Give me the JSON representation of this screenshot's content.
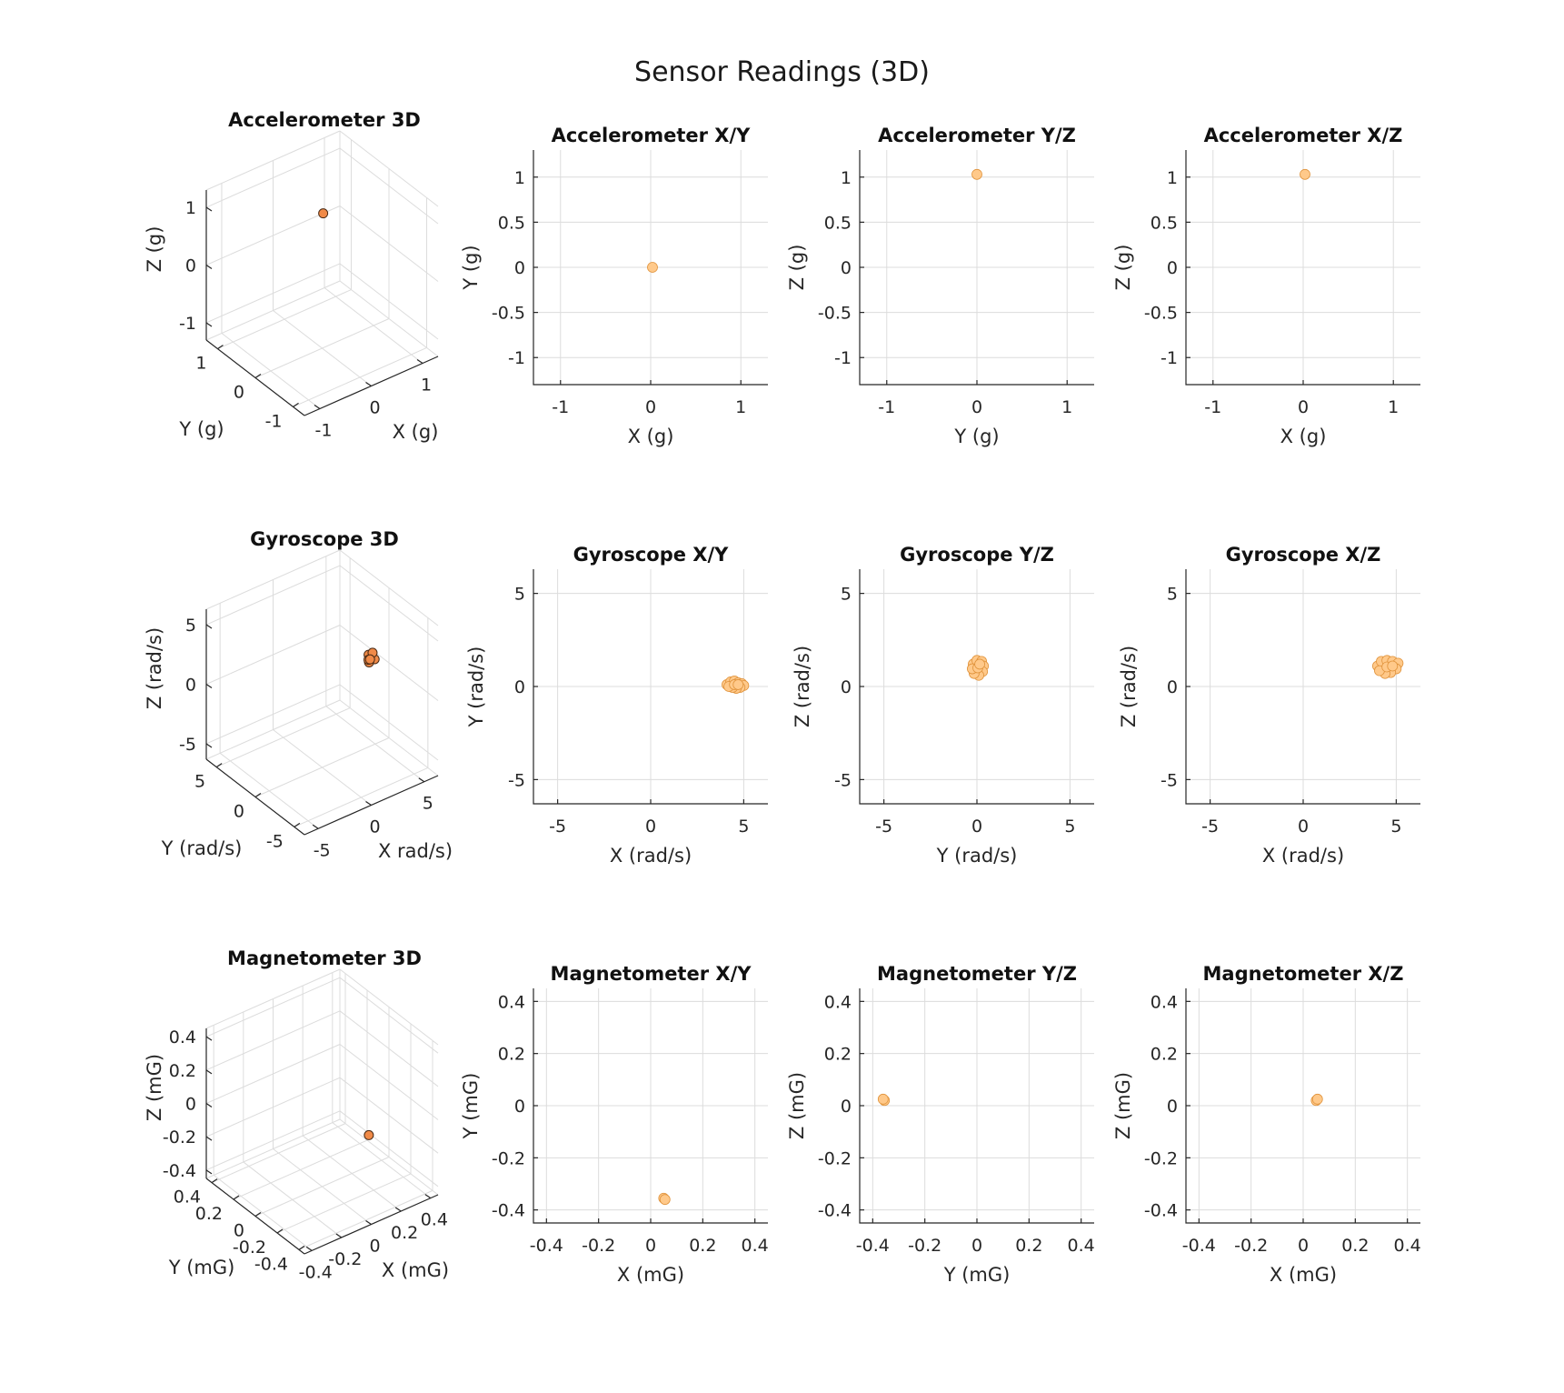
{
  "figure": {
    "title": "Sensor Readings (3D)"
  },
  "chart_data": [
    {
      "id": "acc3d",
      "type": "scatter3d",
      "title": "Accelerometer 3D",
      "xlabel": "X (g)",
      "ylabel": "Y (g)",
      "zlabel": "Z (g)",
      "xlim": [
        -1.3,
        1.3
      ],
      "ylim": [
        -1.3,
        1.3
      ],
      "zlim": [
        -1.3,
        1.3
      ],
      "ticks": [
        -1,
        0,
        1
      ],
      "tick_labels": [
        "-1",
        "0",
        "1"
      ],
      "grid": true,
      "points": [
        [
          0.02,
          0.0,
          1.03
        ]
      ]
    },
    {
      "id": "accxy",
      "type": "scatter",
      "title": "Accelerometer X/Y",
      "xlabel": "X (g)",
      "ylabel": "Y (g)",
      "xlim": [
        -1.3,
        1.3
      ],
      "ylim": [
        -1.3,
        1.3
      ],
      "xticks": [
        -1,
        0,
        1
      ],
      "xtick_labels": [
        "-1",
        "0",
        "1"
      ],
      "yticks": [
        -1,
        -0.5,
        0,
        0.5,
        1
      ],
      "ytick_labels": [
        "-1",
        "-0.5",
        "0",
        "0.5",
        "1"
      ],
      "grid": true,
      "points": [
        [
          0.02,
          0.0
        ]
      ]
    },
    {
      "id": "accyz",
      "type": "scatter",
      "title": "Accelerometer Y/Z",
      "xlabel": "Y (g)",
      "ylabel": "Z (g)",
      "xlim": [
        -1.3,
        1.3
      ],
      "ylim": [
        -1.3,
        1.3
      ],
      "xticks": [
        -1,
        0,
        1
      ],
      "xtick_labels": [
        "-1",
        "0",
        "1"
      ],
      "yticks": [
        -1,
        -0.5,
        0,
        0.5,
        1
      ],
      "ytick_labels": [
        "-1",
        "-0.5",
        "0",
        "0.5",
        "1"
      ],
      "grid": true,
      "points": [
        [
          0.0,
          1.03
        ]
      ]
    },
    {
      "id": "accxz",
      "type": "scatter",
      "title": "Accelerometer X/Z",
      "xlabel": "X (g)",
      "ylabel": "Z (g)",
      "xlim": [
        -1.3,
        1.3
      ],
      "ylim": [
        -1.3,
        1.3
      ],
      "xticks": [
        -1,
        0,
        1
      ],
      "xtick_labels": [
        "-1",
        "0",
        "1"
      ],
      "yticks": [
        -1,
        -0.5,
        0,
        0.5,
        1
      ],
      "ytick_labels": [
        "-1",
        "-0.5",
        "0",
        "0.5",
        "1"
      ],
      "grid": true,
      "points": [
        [
          0.02,
          1.03
        ]
      ]
    },
    {
      "id": "gyr3d",
      "type": "scatter3d",
      "title": "Gyroscope 3D",
      "xlabel": "X rad/s)",
      "ylabel": "Y (rad/s)",
      "zlabel": "Z (rad/s)",
      "xlim": [
        -6.3,
        6.3
      ],
      "ylim": [
        -6.3,
        6.3
      ],
      "zlim": [
        -6.3,
        6.3
      ],
      "ticks": [
        -5,
        0,
        5
      ],
      "tick_labels": [
        "-5",
        "0",
        "5"
      ],
      "grid": true,
      "points": [
        [
          4.4,
          0.0,
          0.9
        ],
        [
          4.6,
          0.3,
          1.2
        ],
        [
          4.8,
          -0.2,
          1.0
        ],
        [
          4.5,
          0.1,
          0.7
        ],
        [
          4.9,
          0.2,
          1.3
        ],
        [
          4.3,
          -0.1,
          1.1
        ],
        [
          4.7,
          0.25,
          0.8
        ]
      ]
    },
    {
      "id": "gyrxy",
      "type": "scatter",
      "title": "Gyroscope X/Y",
      "xlabel": "X (rad/s)",
      "ylabel": "Y (rad/s)",
      "xlim": [
        -6.3,
        6.3
      ],
      "ylim": [
        -6.3,
        6.3
      ],
      "xticks": [
        -5,
        0,
        5
      ],
      "xtick_labels": [
        "-5",
        "0",
        "5"
      ],
      "yticks": [
        -5,
        0,
        5
      ],
      "ytick_labels": [
        "-5",
        "0",
        "5"
      ],
      "grid": true,
      "points": [
        [
          4.1,
          0.1
        ],
        [
          4.3,
          0.25
        ],
        [
          4.5,
          0.3
        ],
        [
          4.7,
          0.2
        ],
        [
          4.9,
          0.15
        ],
        [
          5.0,
          0.05
        ],
        [
          4.8,
          -0.05
        ],
        [
          4.6,
          -0.1
        ],
        [
          4.4,
          -0.05
        ],
        [
          4.2,
          0.0
        ],
        [
          4.5,
          0.1
        ],
        [
          4.7,
          0.1
        ]
      ]
    },
    {
      "id": "gyryz",
      "type": "scatter",
      "title": "Gyroscope Y/Z",
      "xlabel": "Y (rad/s)",
      "ylabel": "Z (rad/s)",
      "xlim": [
        -6.3,
        6.3
      ],
      "ylim": [
        -6.3,
        6.3
      ],
      "xticks": [
        -5,
        0,
        5
      ],
      "xtick_labels": [
        "-5",
        "0",
        "5"
      ],
      "yticks": [
        -5,
        0,
        5
      ],
      "ytick_labels": [
        "-5",
        "0",
        "5"
      ],
      "grid": true,
      "points": [
        [
          -0.2,
          1.2
        ],
        [
          0.0,
          1.4
        ],
        [
          0.25,
          1.35
        ],
        [
          0.35,
          1.1
        ],
        [
          0.3,
          0.8
        ],
        [
          0.1,
          0.6
        ],
        [
          -0.15,
          0.7
        ],
        [
          -0.25,
          0.95
        ],
        [
          0.05,
          1.0
        ],
        [
          0.15,
          1.2
        ]
      ]
    },
    {
      "id": "gyrxz",
      "type": "scatter",
      "title": "Gyroscope X/Z",
      "xlabel": "X (rad/s)",
      "ylabel": "Z (rad/s)",
      "xlim": [
        -6.3,
        6.3
      ],
      "ylim": [
        -6.3,
        6.3
      ],
      "xticks": [
        -5,
        0,
        5
      ],
      "xtick_labels": [
        "-5",
        "0",
        "5"
      ],
      "yticks": [
        -5,
        0,
        5
      ],
      "ytick_labels": [
        "-5",
        "0",
        "5"
      ],
      "grid": true,
      "points": [
        [
          4.0,
          1.1
        ],
        [
          4.2,
          1.35
        ],
        [
          4.5,
          1.4
        ],
        [
          4.8,
          1.35
        ],
        [
          5.1,
          1.25
        ],
        [
          5.0,
          0.95
        ],
        [
          4.7,
          0.75
        ],
        [
          4.4,
          0.7
        ],
        [
          4.1,
          0.85
        ],
        [
          4.5,
          1.05
        ],
        [
          4.8,
          1.1
        ]
      ]
    },
    {
      "id": "mag3d",
      "type": "scatter3d",
      "title": "Magnetometer 3D",
      "xlabel": "X (mG)",
      "ylabel": "Y (mG)",
      "zlabel": "Z (mG)",
      "xlim": [
        -0.45,
        0.45
      ],
      "ylim": [
        -0.45,
        0.45
      ],
      "zlim": [
        -0.45,
        0.45
      ],
      "ticks": [
        -0.4,
        -0.2,
        0,
        0.2,
        0.4
      ],
      "tick_labels": [
        "-0.4",
        "-0.2",
        "0",
        "0.2",
        "0.4"
      ],
      "grid": true,
      "points": [
        [
          0.05,
          -0.36,
          0.02
        ]
      ]
    },
    {
      "id": "magxy",
      "type": "scatter",
      "title": "Magnetometer X/Y",
      "xlabel": "X (mG)",
      "ylabel": "Y (mG)",
      "xlim": [
        -0.45,
        0.45
      ],
      "ylim": [
        -0.45,
        0.45
      ],
      "xticks": [
        -0.4,
        -0.2,
        0,
        0.2,
        0.4
      ],
      "xtick_labels": [
        "-0.4",
        "-0.2",
        "0",
        "0.2",
        "0.4"
      ],
      "yticks": [
        -0.4,
        -0.2,
        0,
        0.2,
        0.4
      ],
      "ytick_labels": [
        "-0.4",
        "-0.2",
        "0",
        "0.2",
        "0.4"
      ],
      "grid": true,
      "points": [
        [
          0.05,
          -0.355
        ],
        [
          0.055,
          -0.36
        ]
      ]
    },
    {
      "id": "magyz",
      "type": "scatter",
      "title": "Magnetometer Y/Z",
      "xlabel": "Y (mG)",
      "ylabel": "Z (mG)",
      "xlim": [
        -0.45,
        0.45
      ],
      "ylim": [
        -0.45,
        0.45
      ],
      "xticks": [
        -0.4,
        -0.2,
        0,
        0.2,
        0.4
      ],
      "xtick_labels": [
        "-0.4",
        "-0.2",
        "0",
        "0.2",
        "0.4"
      ],
      "yticks": [
        -0.4,
        -0.2,
        0,
        0.2,
        0.4
      ],
      "ytick_labels": [
        "-0.4",
        "-0.2",
        "0",
        "0.2",
        "0.4"
      ],
      "grid": true,
      "points": [
        [
          -0.355,
          0.02
        ],
        [
          -0.36,
          0.025
        ]
      ]
    },
    {
      "id": "magxz",
      "type": "scatter",
      "title": "Magnetometer X/Z",
      "xlabel": "X (mG)",
      "ylabel": "Z (mG)",
      "xlim": [
        -0.45,
        0.45
      ],
      "ylim": [
        -0.45,
        0.45
      ],
      "xticks": [
        -0.4,
        -0.2,
        0,
        0.2,
        0.4
      ],
      "xtick_labels": [
        "-0.4",
        "-0.2",
        "0",
        "0.2",
        "0.4"
      ],
      "yticks": [
        -0.4,
        -0.2,
        0,
        0.2,
        0.4
      ],
      "ytick_labels": [
        "-0.4",
        "-0.2",
        "0",
        "0.2",
        "0.4"
      ],
      "grid": true,
      "points": [
        [
          0.05,
          0.02
        ],
        [
          0.055,
          0.025
        ]
      ]
    }
  ],
  "colors": {
    "point_fill": "#ffc98a",
    "point_edge": "#e0933c",
    "point_fill_3d": "#f08a48",
    "point_edge_3d": "#4a2a14"
  }
}
